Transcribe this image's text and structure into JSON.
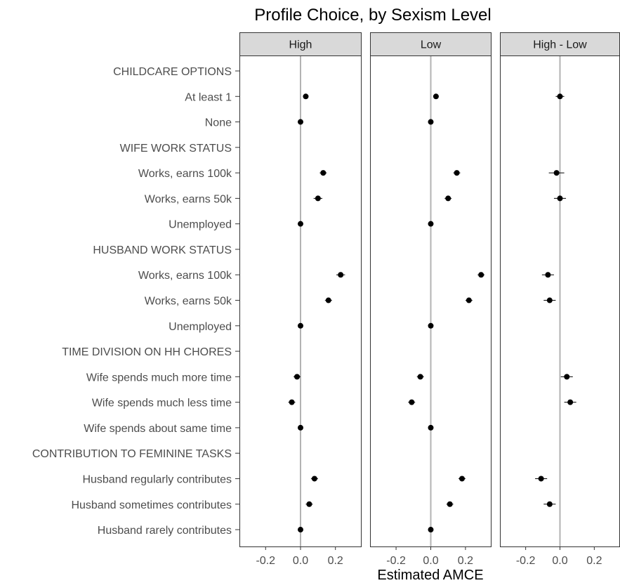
{
  "chart_data": {
    "type": "scatter",
    "title": "Profile Choice, by Sexism Level",
    "xlabel": "Estimated AMCE",
    "ylabel": "",
    "xlim": [
      -0.35,
      0.35
    ],
    "xticks": [
      "-0.2",
      "0.0",
      "0.2"
    ],
    "xtick_values": [
      -0.2,
      0.0,
      0.2
    ],
    "categories": [
      "CHILDCARE OPTIONS",
      "At least 1",
      "None",
      "WIFE WORK STATUS",
      "Works, earns 100k",
      "Works, earns 50k",
      "Unemployed",
      "HUSBAND WORK STATUS",
      "Works, earns 100k",
      "Works, earns 50k",
      "Unemployed",
      "TIME DIVISION ON HH CHORES",
      "Wife spends much more time",
      "Wife spends much less time",
      "Wife spends about same time",
      "CONTRIBUTION TO FEMININE TASKS",
      "Husband regularly contributes",
      "Husband sometimes contributes",
      "Husband rarely contributes"
    ],
    "series": [
      {
        "name": "High",
        "estimate": [
          null,
          0.03,
          0.0,
          null,
          0.13,
          0.1,
          0.0,
          null,
          0.23,
          0.16,
          0.0,
          null,
          -0.02,
          -0.05,
          0.0,
          null,
          0.08,
          0.05,
          0.0
        ],
        "lower": [
          null,
          0.015,
          0.0,
          null,
          0.11,
          0.075,
          0.0,
          null,
          0.205,
          0.14,
          0.0,
          null,
          -0.04,
          -0.07,
          0.0,
          null,
          0.06,
          0.03,
          0.0
        ],
        "upper": [
          null,
          0.045,
          0.0,
          null,
          0.15,
          0.125,
          0.0,
          null,
          0.255,
          0.18,
          0.0,
          null,
          0.0,
          -0.03,
          0.0,
          null,
          0.1,
          0.07,
          0.0
        ]
      },
      {
        "name": "Low",
        "estimate": [
          null,
          0.03,
          0.0,
          null,
          0.15,
          0.1,
          0.0,
          null,
          0.29,
          0.22,
          0.0,
          null,
          -0.06,
          -0.11,
          0.0,
          null,
          0.18,
          0.11,
          0.0
        ],
        "lower": [
          null,
          0.015,
          0.0,
          null,
          0.13,
          0.08,
          0.0,
          null,
          0.27,
          0.2,
          0.0,
          null,
          -0.08,
          -0.13,
          0.0,
          null,
          0.16,
          0.09,
          0.0
        ],
        "upper": [
          null,
          0.045,
          0.0,
          null,
          0.17,
          0.12,
          0.0,
          null,
          0.31,
          0.24,
          0.0,
          null,
          -0.04,
          -0.09,
          0.0,
          null,
          0.2,
          0.13,
          0.0
        ]
      },
      {
        "name": "High - Low",
        "estimate": [
          null,
          0.0,
          null,
          null,
          -0.02,
          0.0,
          null,
          null,
          -0.07,
          -0.06,
          null,
          null,
          0.04,
          0.06,
          null,
          null,
          -0.11,
          -0.06,
          null
        ],
        "lower": [
          null,
          -0.025,
          null,
          null,
          -0.065,
          -0.035,
          null,
          null,
          -0.105,
          -0.095,
          null,
          null,
          0.005,
          0.025,
          null,
          null,
          -0.145,
          -0.095,
          null
        ],
        "upper": [
          null,
          0.025,
          null,
          null,
          0.025,
          0.035,
          null,
          null,
          -0.035,
          -0.025,
          null,
          null,
          0.075,
          0.095,
          null,
          null,
          -0.075,
          -0.025,
          null
        ]
      }
    ],
    "grid": false,
    "facets": [
      "High",
      "Low",
      "High - Low"
    ]
  }
}
